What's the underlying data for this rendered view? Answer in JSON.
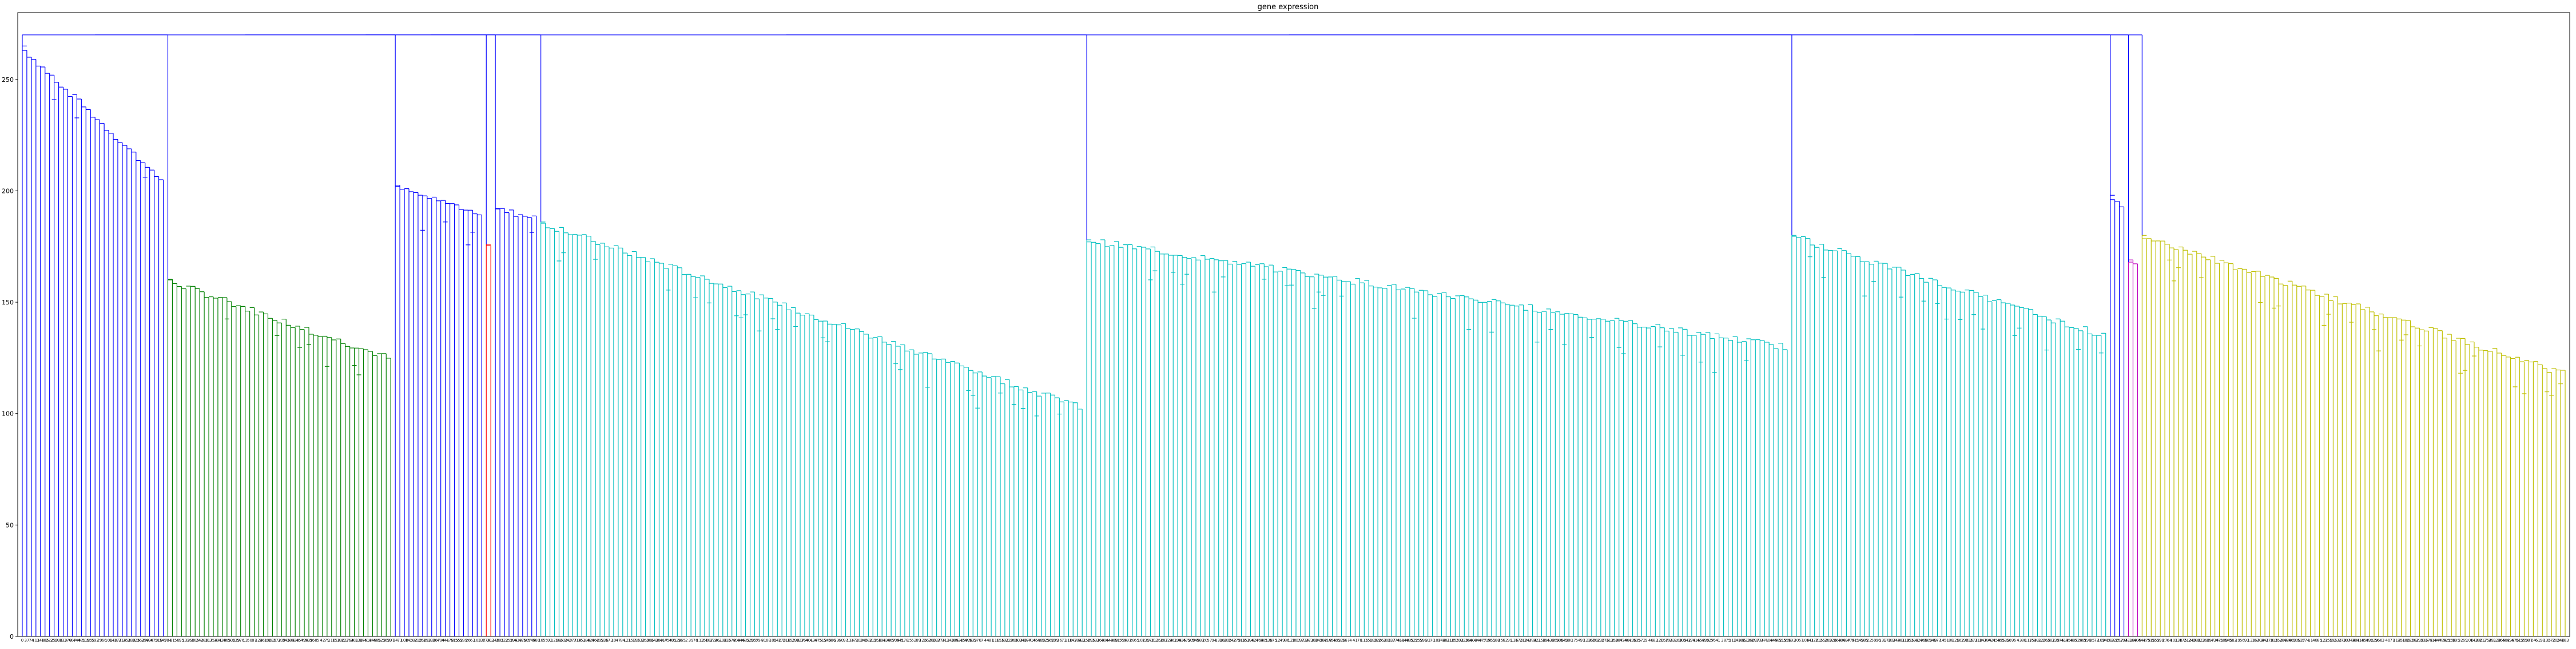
{
  "chart_data": {
    "type": "dendrogram",
    "title": "gene expression",
    "xlabel": "",
    "ylabel": "",
    "ylim": [
      0,
      280
    ],
    "y_ticks": [
      0,
      50,
      100,
      150,
      200,
      250
    ],
    "grid": false,
    "legend": "none",
    "leaf_count": 560,
    "leaf_label_note_visible": "leaf labels printed along x-axis (gene indices)",
    "colors": {
      "above_threshold": "#0000ff",
      "cluster_green": "#008000",
      "cluster_red": "#ff0000",
      "cluster_cyan": "#00bfbf",
      "cluster_magenta": "#bf00bf",
      "cluster_yellow": "#bfbf00",
      "axis": "#000000"
    },
    "clusters": [
      {
        "color_key": "above_threshold",
        "leaves": 32,
        "top": 265,
        "bottom": 205
      },
      {
        "color_key": "cluster_green",
        "leaves": 50,
        "top": 160,
        "bottom": 125
      },
      {
        "color_key": "above_threshold",
        "leaves": 20,
        "top": 202,
        "bottom": 190
      },
      {
        "color_key": "cluster_red",
        "leaves": 2,
        "top": 176,
        "bottom": 176
      },
      {
        "color_key": "above_threshold",
        "leaves": 10,
        "top": 192,
        "bottom": 188
      },
      {
        "color_key": "cluster_cyan",
        "leaves": 120,
        "top": 186,
        "bottom": 103
      },
      {
        "color_key": "cluster_cyan",
        "leaves": 155,
        "top": 178,
        "bottom": 130
      },
      {
        "color_key": "cluster_cyan",
        "leaves": 70,
        "top": 180,
        "bottom": 135
      },
      {
        "color_key": "above_threshold",
        "leaves": 4,
        "top": 198,
        "bottom": 192
      },
      {
        "color_key": "cluster_magenta",
        "leaves": 3,
        "top": 168,
        "bottom": 168
      },
      {
        "color_key": "cluster_yellow",
        "leaves": 94,
        "top": 180,
        "bottom": 118
      }
    ]
  }
}
